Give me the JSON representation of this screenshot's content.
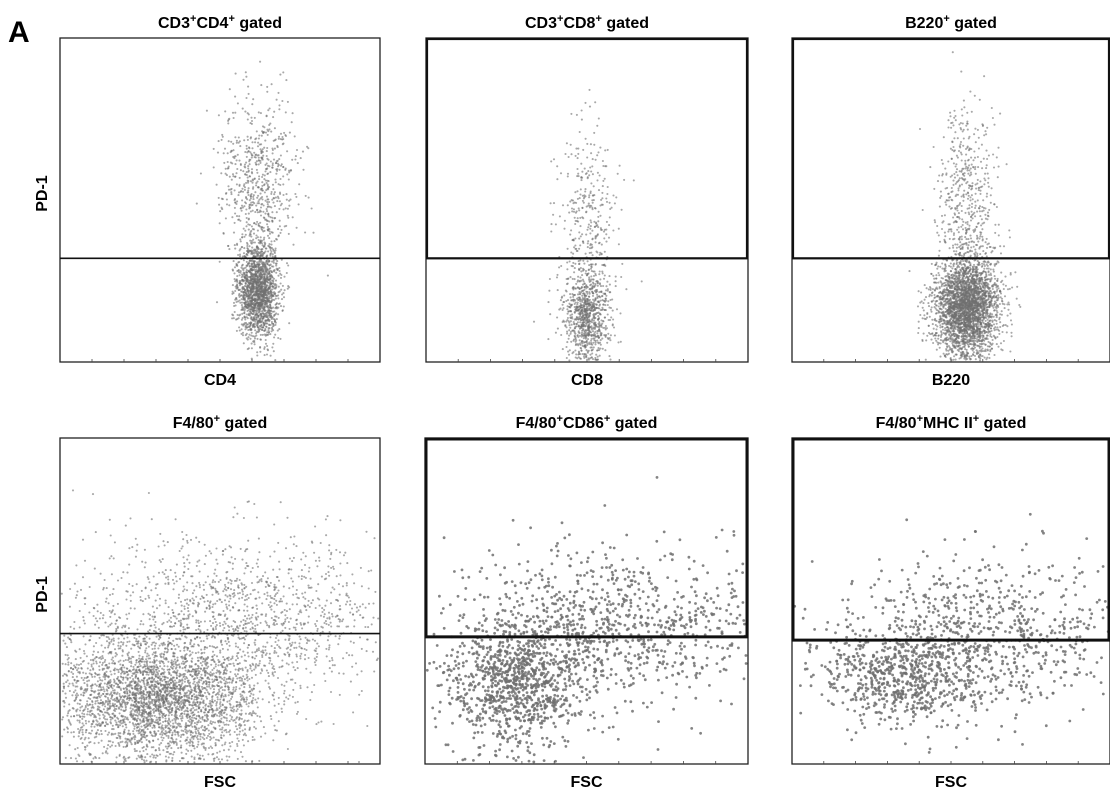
{
  "panel_label": "A",
  "chart_data": [
    {
      "type": "scatter",
      "title": [
        "CD3",
        "+",
        "CD4",
        "+",
        " gated"
      ],
      "xlabel": "CD4",
      "ylabel": "PD-1",
      "cluster": {
        "cx": 0.62,
        "cy": 0.78,
        "sx": 0.032,
        "sy": 0.075,
        "n": 1700
      },
      "tail": {
        "cx": 0.62,
        "cy": 0.45,
        "sx": 0.06,
        "sy": 0.13,
        "n": 650
      },
      "gate": {
        "type": "line",
        "y": 0.68
      }
    },
    {
      "type": "scatter",
      "title": [
        "CD3",
        "+",
        "CD8",
        "+",
        " gated"
      ],
      "xlabel": "CD8",
      "ylabel": "",
      "cluster": {
        "cx": 0.5,
        "cy": 0.85,
        "sx": 0.035,
        "sy": 0.075,
        "n": 900
      },
      "tail": {
        "cx": 0.5,
        "cy": 0.55,
        "sx": 0.05,
        "sy": 0.14,
        "n": 300
      },
      "gate": {
        "type": "box",
        "y": 0.68
      }
    },
    {
      "type": "scatter",
      "title": [
        "B220",
        "+",
        " gated"
      ],
      "xlabel": "B220",
      "ylabel": "",
      "cluster": {
        "cx": 0.55,
        "cy": 0.83,
        "sx": 0.05,
        "sy": 0.075,
        "n": 3000
      },
      "tail": {
        "cx": 0.55,
        "cy": 0.5,
        "sx": 0.045,
        "sy": 0.14,
        "n": 500
      },
      "gate": {
        "type": "box",
        "y": 0.68
      }
    },
    {
      "type": "scatter",
      "title": [
        "F4/80",
        "+",
        " gated"
      ],
      "xlabel": "FSC",
      "ylabel": "PD-1",
      "cluster": {
        "cx": 0.3,
        "cy": 0.8,
        "sx": 0.16,
        "sy": 0.09,
        "n": 3200
      },
      "tail": {
        "cx": 0.55,
        "cy": 0.55,
        "sx": 0.28,
        "sy": 0.13,
        "n": 1500
      },
      "gate": {
        "type": "line",
        "y": 0.6
      }
    },
    {
      "type": "scatter",
      "title": [
        "F4/80",
        "+",
        "CD86",
        "+",
        " gated"
      ],
      "xlabel": "FSC",
      "ylabel": "",
      "cluster": {
        "cx": 0.28,
        "cy": 0.75,
        "sx": 0.11,
        "sy": 0.1,
        "n": 1000
      },
      "tail": {
        "cx": 0.6,
        "cy": 0.58,
        "sx": 0.25,
        "sy": 0.12,
        "n": 900
      },
      "gate": {
        "type": "box",
        "y": 0.61
      }
    },
    {
      "type": "scatter",
      "title": [
        "F4/80",
        "+",
        "MHC II",
        "+",
        " gated"
      ],
      "xlabel": "FSC",
      "ylabel": "",
      "cluster": {
        "cx": 0.35,
        "cy": 0.73,
        "sx": 0.13,
        "sy": 0.07,
        "n": 650
      },
      "tail": {
        "cx": 0.62,
        "cy": 0.6,
        "sx": 0.25,
        "sy": 0.12,
        "n": 800
      },
      "gate": {
        "type": "box",
        "y": 0.62
      }
    }
  ]
}
